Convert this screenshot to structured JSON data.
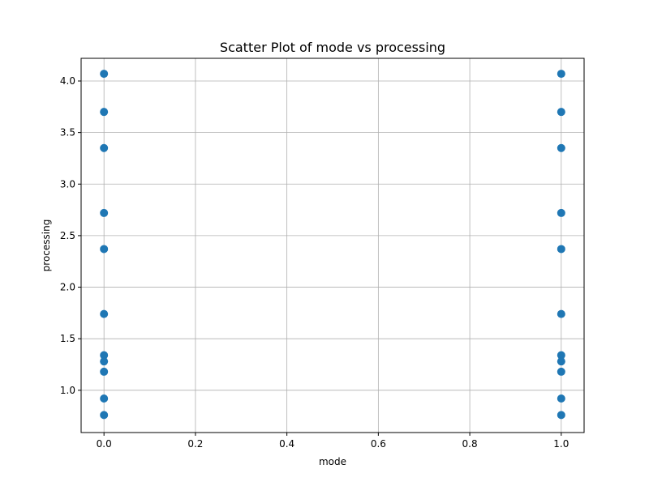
{
  "chart_data": {
    "type": "scatter",
    "title": "Scatter Plot of mode vs processing",
    "xlabel": "mode",
    "ylabel": "processing",
    "xlim": [
      -0.05,
      1.05
    ],
    "ylim": [
      0.59,
      4.22
    ],
    "x_ticks": [
      0.0,
      0.2,
      0.4,
      0.6,
      0.8,
      1.0
    ],
    "x_tick_labels": [
      "0.0",
      "0.2",
      "0.4",
      "0.6",
      "0.8",
      "1.0"
    ],
    "y_ticks": [
      1.0,
      1.5,
      2.0,
      2.5,
      3.0,
      3.5,
      4.0
    ],
    "y_tick_labels": [
      "1.0",
      "1.5",
      "2.0",
      "2.5",
      "3.0",
      "3.5",
      "4.0"
    ],
    "grid": true,
    "point_color": "#1f77b4",
    "points": [
      {
        "x": 0,
        "y": 4.07
      },
      {
        "x": 0,
        "y": 3.7
      },
      {
        "x": 0,
        "y": 3.35
      },
      {
        "x": 0,
        "y": 2.72
      },
      {
        "x": 0,
        "y": 2.37
      },
      {
        "x": 0,
        "y": 1.74
      },
      {
        "x": 0,
        "y": 1.34
      },
      {
        "x": 0,
        "y": 1.28
      },
      {
        "x": 0,
        "y": 1.18
      },
      {
        "x": 0,
        "y": 0.92
      },
      {
        "x": 0,
        "y": 0.76
      },
      {
        "x": 1,
        "y": 4.07
      },
      {
        "x": 1,
        "y": 3.7
      },
      {
        "x": 1,
        "y": 3.35
      },
      {
        "x": 1,
        "y": 2.72
      },
      {
        "x": 1,
        "y": 2.37
      },
      {
        "x": 1,
        "y": 1.74
      },
      {
        "x": 1,
        "y": 1.34
      },
      {
        "x": 1,
        "y": 1.28
      },
      {
        "x": 1,
        "y": 1.18
      },
      {
        "x": 1,
        "y": 0.92
      },
      {
        "x": 1,
        "y": 0.76
      }
    ]
  }
}
